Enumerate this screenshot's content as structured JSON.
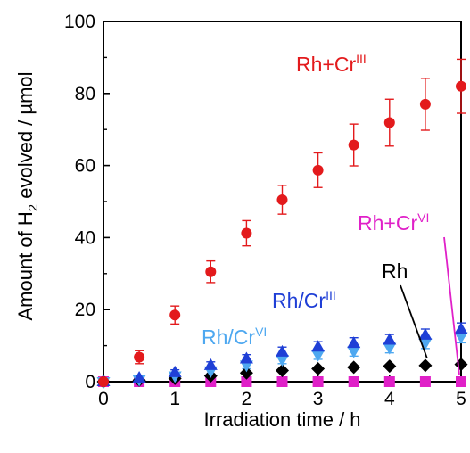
{
  "chart_data": {
    "type": "scatter",
    "xlabel": "Irradiation time / h",
    "ylabel": {
      "prefix": "Amount of H",
      "subscript": "2",
      "suffix": " evolved / µmol"
    },
    "xlim": [
      0,
      5
    ],
    "ylim": [
      0,
      100
    ],
    "xticks": [
      "0",
      "1",
      "2",
      "3",
      "4",
      "5"
    ],
    "yticks": [
      "0",
      "20",
      "40",
      "60",
      "80",
      "100"
    ],
    "grid": false,
    "series": [
      {
        "label_base": "Rh+Cr",
        "label_sup": "III",
        "color": "#e31a1c",
        "marker": "circle",
        "x": [
          0,
          0.5,
          1,
          1.5,
          2,
          2.5,
          3,
          3.5,
          4,
          4.5,
          5
        ],
        "y": [
          0,
          6.8,
          18.5,
          30.5,
          41.2,
          50.5,
          58.7,
          65.7,
          71.9,
          77.0,
          82.0
        ],
        "err": [
          0,
          1.8,
          2.5,
          3.0,
          3.5,
          4.0,
          4.8,
          5.8,
          6.5,
          7.2,
          7.5
        ]
      },
      {
        "label_base": "Rh/Cr",
        "label_sup": "III",
        "color": "#1f3fd6",
        "marker": "triangle-up",
        "x": [
          0,
          0.5,
          1,
          1.5,
          2,
          2.5,
          3,
          3.5,
          4,
          4.5,
          5
        ],
        "y": [
          0,
          1.0,
          2.5,
          4.5,
          6.3,
          8.2,
          9.6,
          10.6,
          11.5,
          12.9,
          14.5
        ],
        "err": [
          0,
          0.5,
          0.8,
          1.0,
          1.2,
          1.4,
          1.5,
          1.6,
          1.6,
          1.7,
          1.8
        ]
      },
      {
        "label_base": "Rh/Cr",
        "label_sup": "VI",
        "color": "#4ea8f0",
        "marker": "triangle-down",
        "x": [
          0,
          0.5,
          1,
          1.5,
          2,
          2.5,
          3,
          3.5,
          4,
          4.5,
          5
        ],
        "y": [
          0,
          0.6,
          1.6,
          3.0,
          4.6,
          6.2,
          7.5,
          8.5,
          9.5,
          10.8,
          12.5
        ],
        "err": [
          0,
          0.4,
          0.6,
          0.8,
          1.0,
          1.2,
          1.3,
          1.4,
          1.5,
          1.6,
          1.7
        ]
      },
      {
        "label_base": "Rh",
        "label_sup": "",
        "color": "#000000",
        "marker": "diamond",
        "x": [
          0,
          0.5,
          1,
          1.5,
          2,
          2.5,
          3,
          3.5,
          4,
          4.5,
          5
        ],
        "y": [
          0,
          0.4,
          0.9,
          1.6,
          2.4,
          3.1,
          3.6,
          4.0,
          4.3,
          4.5,
          4.8
        ],
        "err": [
          0,
          0,
          0,
          0,
          0,
          0,
          0,
          0,
          0,
          0,
          0
        ]
      },
      {
        "label_base": "Rh+Cr",
        "label_sup": "VI",
        "color": "#e020c8",
        "marker": "square",
        "x": [
          0,
          0.5,
          1,
          1.5,
          2,
          2.5,
          3,
          3.5,
          4,
          4.5,
          5
        ],
        "y": [
          0,
          0,
          0,
          0,
          0,
          0,
          0,
          0,
          0,
          0,
          0
        ],
        "err": [
          0,
          0,
          0,
          0,
          0,
          0,
          0,
          0,
          0,
          0,
          0
        ]
      }
    ]
  }
}
